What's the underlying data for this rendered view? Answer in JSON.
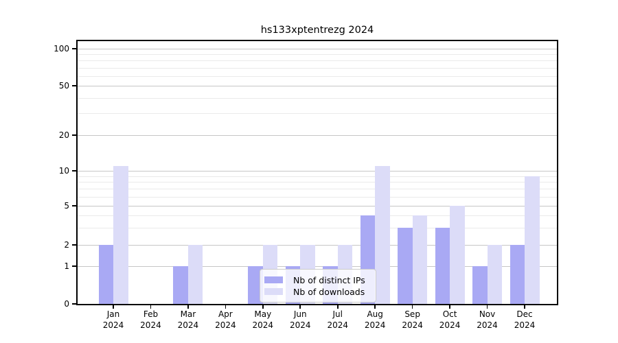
{
  "title": "hs133xptentrezg 2024",
  "colors": {
    "bar_distinct_ips": "#a9a9f4",
    "bar_downloads": "#dcdcf8",
    "major_grid": "#c6c6c6",
    "minor_grid": "#eaeaea",
    "spine": "#000000",
    "text": "#000000"
  },
  "chart_data": {
    "type": "bar",
    "title": "hs133xptentrezg 2024",
    "categories": [
      "Jan 2024",
      "Feb 2024",
      "Mar 2024",
      "Apr 2024",
      "May 2024",
      "Jun 2024",
      "Jul 2024",
      "Aug 2024",
      "Sep 2024",
      "Oct 2024",
      "Nov 2024",
      "Dec 2024"
    ],
    "months": [
      "Jan",
      "Feb",
      "Mar",
      "Apr",
      "May",
      "Jun",
      "Jul",
      "Aug",
      "Sep",
      "Oct",
      "Nov",
      "Dec"
    ],
    "year": "2024",
    "series": [
      {
        "name": "Nb of distinct IPs",
        "color": "#a9a9f4",
        "values": [
          2,
          0,
          1,
          0,
          1,
          1,
          1,
          4,
          3,
          3,
          1,
          2
        ]
      },
      {
        "name": "Nb of downloads",
        "color": "#dcdcf8",
        "values": [
          11,
          0,
          2,
          0,
          2,
          2,
          2,
          11,
          4,
          5,
          2,
          9
        ]
      }
    ],
    "xlabel": "",
    "ylabel": "",
    "yscale": "symlog",
    "ylim": [
      0,
      115
    ],
    "yticks": [
      0,
      1,
      2,
      5,
      10,
      20,
      50,
      100
    ],
    "ytick_labels": [
      "0",
      "1",
      "2",
      "5",
      "10",
      "20",
      "50",
      "100"
    ],
    "minor_gridlines": [
      3,
      4,
      6,
      7,
      8,
      9,
      30,
      40,
      60,
      70,
      80,
      90
    ],
    "grid": true,
    "legend": {
      "position": "lower center",
      "items": [
        "Nb of distinct IPs",
        "Nb of downloads"
      ]
    }
  }
}
